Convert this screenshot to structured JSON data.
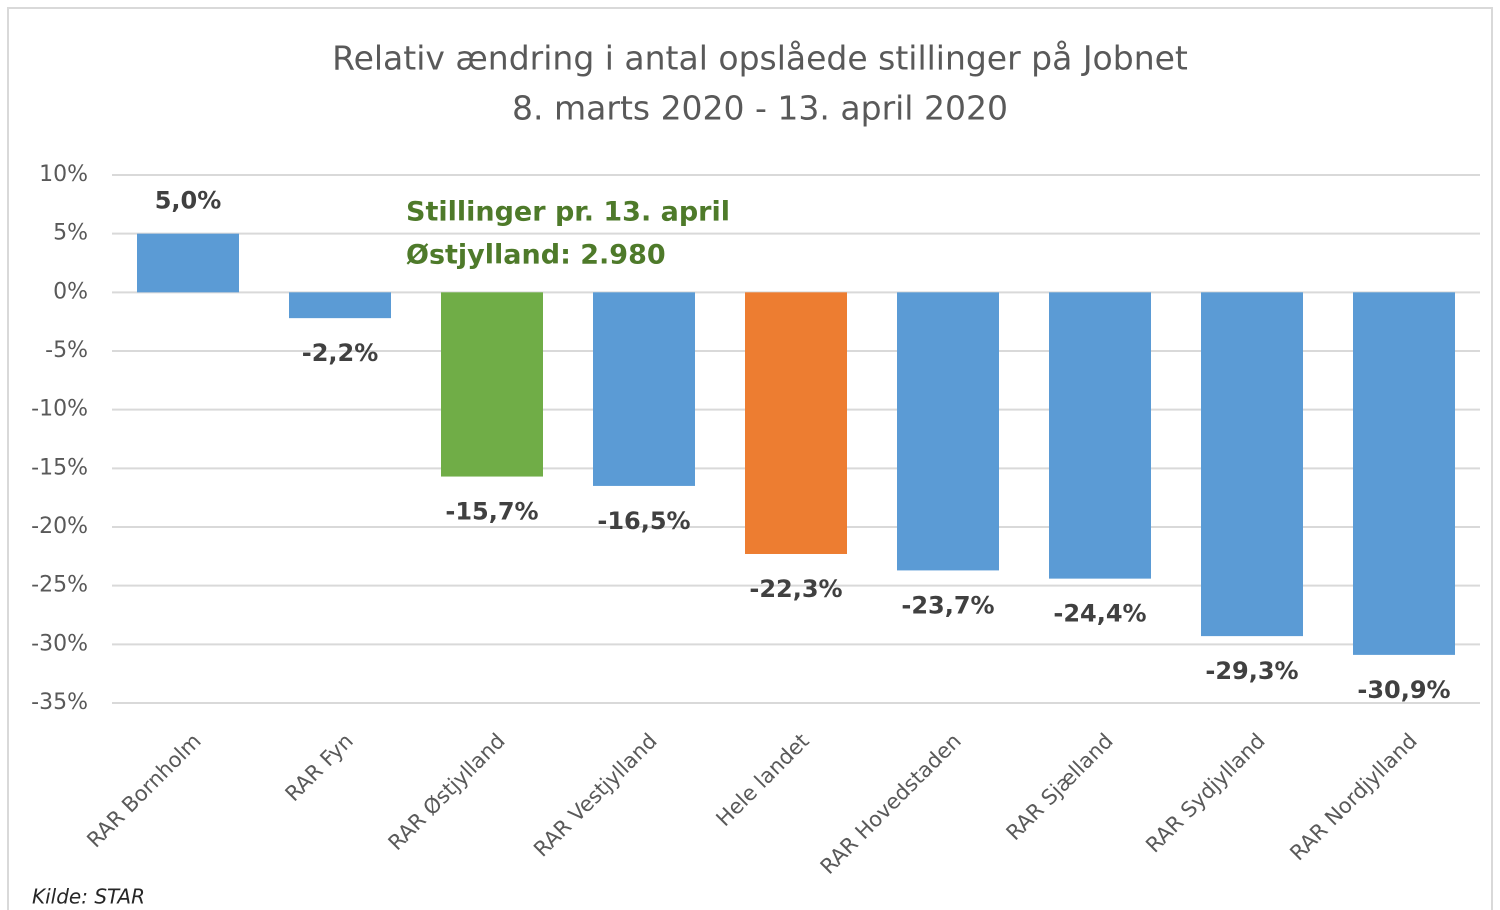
{
  "chart_data": {
    "type": "bar",
    "title": "Relativ ændring i antal opslåede stillinger på Jobnet",
    "subtitle": "8. marts 2020 - 13. april 2020",
    "categories": [
      "RAR Bornholm",
      "RAR Fyn",
      "RAR Østjylland",
      "RAR Vestjylland",
      "Hele landet",
      "RAR Hovedstaden",
      "RAR Sjælland",
      "RAR Sydjylland",
      "RAR Nordjylland"
    ],
    "values": [
      5.0,
      -2.2,
      -15.7,
      -16.5,
      -22.3,
      -23.7,
      -24.4,
      -29.3,
      -30.9
    ],
    "value_labels": [
      "5,0%",
      "-2,2%",
      "-15,7%",
      "-16,5%",
      "-22,3%",
      "-23,7%",
      "-24,4%",
      "-29,3%",
      "-30,9%"
    ],
    "colors": [
      "#5b9bd5",
      "#5b9bd5",
      "#70ad47",
      "#5b9bd5",
      "#ed7d31",
      "#5b9bd5",
      "#5b9bd5",
      "#5b9bd5",
      "#5b9bd5"
    ],
    "ylim": [
      -35,
      10
    ],
    "yticks": [
      {
        "value": -35,
        "label": "-35%"
      },
      {
        "value": -30,
        "label": "-30%"
      },
      {
        "value": -25,
        "label": "-25%"
      },
      {
        "value": -20,
        "label": "-20%"
      },
      {
        "value": -15,
        "label": "-15%"
      },
      {
        "value": -10,
        "label": "-10%"
      },
      {
        "value": -5,
        "label": "-5%"
      },
      {
        "value": 0,
        "label": "0%"
      },
      {
        "value": 5,
        "label": "5%"
      },
      {
        "value": 10,
        "label": "10%"
      }
    ],
    "grid": true,
    "annotations": [
      "Stillinger pr. 13. april",
      "Østjylland: 2.980"
    ],
    "source": "Kilde: STAR"
  }
}
